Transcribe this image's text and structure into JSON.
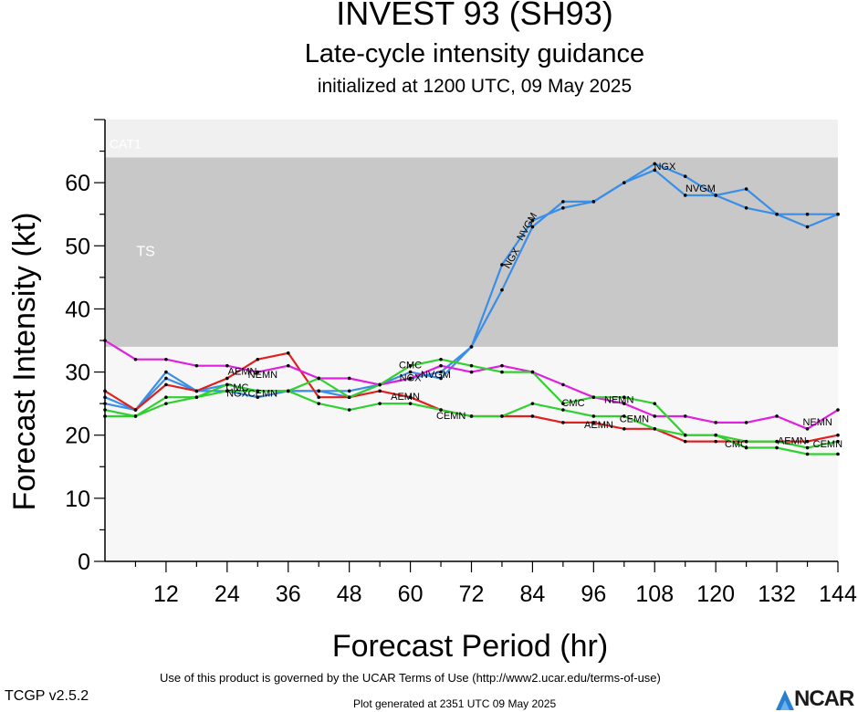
{
  "header": {
    "title": "INVEST 93 (SH93)",
    "subtitle": "Late-cycle intensity guidance",
    "init": "initialized at 1200 UTC, 09 May 2025"
  },
  "footer": {
    "terms": "Use of this product is governed by the UCAR Terms of Use (http://www2.ucar.edu/terms-of-use)",
    "version": "TCGP v2.5.2",
    "generated": "Plot generated at 2351 UTC   09 May 2025",
    "logo": "NCAR"
  },
  "chart_data": {
    "type": "line",
    "xlabel": "Forecast Period (hr)",
    "ylabel": "Forecast Intensity (kt)",
    "xlim": [
      0,
      144
    ],
    "ylim": [
      0,
      70
    ],
    "xticks": [
      12,
      24,
      36,
      48,
      60,
      72,
      84,
      96,
      108,
      120,
      132,
      144
    ],
    "yticks": [
      0,
      10,
      20,
      30,
      40,
      50,
      60
    ],
    "bands": [
      {
        "label": "TS",
        "from": 34,
        "to": 64,
        "color": "#c8c8c8"
      },
      {
        "label": "CAT1",
        "from": 64,
        "to": 70,
        "color": "#f0f0f0"
      }
    ],
    "background": "#f7f7f7",
    "series": [
      {
        "id": "blue-a",
        "color": "#3a8ee6",
        "x": [
          0,
          6,
          12,
          18,
          24,
          30,
          36,
          42,
          48,
          54,
          60,
          66,
          72,
          78,
          84,
          90,
          96,
          102,
          108,
          114,
          120,
          126,
          132,
          138,
          144
        ],
        "y": [
          26,
          24,
          30,
          27,
          27,
          26,
          27,
          27,
          26,
          28,
          29,
          30,
          34,
          47,
          54,
          56,
          57,
          60,
          63,
          61,
          58,
          59,
          55,
          55,
          55
        ]
      },
      {
        "id": "blue-b",
        "color": "#3a8ee6",
        "x": [
          0,
          6,
          12,
          18,
          24,
          30,
          36,
          42,
          48,
          54,
          60,
          66,
          72,
          78,
          84,
          90,
          96,
          102,
          108,
          114,
          120,
          126,
          132,
          138,
          144
        ],
        "y": [
          25,
          24,
          29,
          27,
          28,
          27,
          27,
          27,
          27,
          28,
          30,
          29,
          34,
          43,
          53,
          57,
          57,
          60,
          62,
          58,
          58,
          56,
          55,
          53,
          55
        ]
      },
      {
        "id": "red",
        "color": "#e02020",
        "x": [
          0,
          6,
          12,
          18,
          24,
          30,
          36,
          42,
          48,
          54,
          60,
          66,
          72,
          78,
          84,
          90,
          96,
          102,
          108,
          114,
          120,
          126,
          132,
          138,
          144
        ],
        "y": [
          27,
          24,
          28,
          27,
          29,
          32,
          33,
          26,
          26,
          27,
          26,
          24,
          23,
          23,
          23,
          22,
          22,
          21,
          21,
          19,
          19,
          19,
          19,
          19,
          20
        ]
      },
      {
        "id": "magenta",
        "color": "#e020e0",
        "x": [
          0,
          6,
          12,
          18,
          24,
          30,
          36,
          42,
          48,
          54,
          60,
          66,
          72,
          78,
          84,
          90,
          96,
          102,
          108,
          114,
          120,
          126,
          132,
          138,
          144
        ],
        "y": [
          35,
          32,
          32,
          31,
          31,
          30,
          31,
          29,
          29,
          28,
          29,
          31,
          30,
          31,
          30,
          28,
          26,
          25,
          23,
          23,
          22,
          22,
          23,
          21,
          24
        ]
      },
      {
        "id": "green-a",
        "color": "#30d030",
        "x": [
          0,
          6,
          12,
          18,
          24,
          30,
          36,
          42,
          48,
          54,
          60,
          66,
          72,
          78,
          84,
          90,
          96,
          102,
          108,
          114,
          120,
          126,
          132,
          138,
          144
        ],
        "y": [
          24,
          23,
          26,
          26,
          28,
          27,
          27,
          29,
          26,
          28,
          31,
          32,
          31,
          30,
          30,
          25,
          26,
          26,
          25,
          20,
          20,
          19,
          19,
          18,
          19
        ]
      },
      {
        "id": "green-b",
        "color": "#30d030",
        "x": [
          0,
          6,
          12,
          18,
          24,
          30,
          36,
          42,
          48,
          54,
          60,
          66,
          72,
          78,
          84,
          90,
          96,
          102,
          108,
          114,
          120,
          126,
          132,
          138,
          144
        ],
        "y": [
          23,
          23,
          25,
          26,
          27,
          27,
          27,
          25,
          24,
          25,
          25,
          24,
          23,
          23,
          25,
          24,
          23,
          23,
          21,
          20,
          20,
          18,
          18,
          17,
          17
        ]
      }
    ],
    "annotations": [
      {
        "text": "TS",
        "x": 8,
        "y": 49,
        "color": "#ffffff",
        "size": 16
      },
      {
        "text": "CAT1",
        "x": 4,
        "y": 66,
        "color": "#ffffff",
        "size": 14
      },
      {
        "text": "AEMN",
        "x": 27,
        "y": 30,
        "color": "#000",
        "size": 11
      },
      {
        "text": "NEMN",
        "x": 31,
        "y": 29.5,
        "color": "#000",
        "size": 11
      },
      {
        "text": "CMC",
        "x": 26,
        "y": 27.5,
        "color": "#000",
        "size": 11
      },
      {
        "text": "NGX",
        "x": 26,
        "y": 26.5,
        "color": "#000",
        "size": 11
      },
      {
        "text": "CEMN",
        "x": 31,
        "y": 26.5,
        "color": "#000",
        "size": 11
      },
      {
        "text": "CMC",
        "x": 60,
        "y": 31,
        "color": "#000",
        "size": 11
      },
      {
        "text": "NGX",
        "x": 60,
        "y": 29,
        "color": "#000",
        "size": 11
      },
      {
        "text": "NVGM",
        "x": 65,
        "y": 29.5,
        "color": "#000",
        "size": 11
      },
      {
        "text": "AEMN",
        "x": 59,
        "y": 26,
        "color": "#000",
        "size": 11
      },
      {
        "text": "CEMN",
        "x": 68,
        "y": 23,
        "color": "#000",
        "size": 11
      },
      {
        "text": "NGX",
        "x": 80,
        "y": 48,
        "color": "#000",
        "size": 11,
        "rotate": -60
      },
      {
        "text": "NVGM",
        "x": 83,
        "y": 53,
        "color": "#000",
        "size": 11,
        "rotate": -60
      },
      {
        "text": "CMC",
        "x": 92,
        "y": 25,
        "color": "#000",
        "size": 11
      },
      {
        "text": "NEMN",
        "x": 101,
        "y": 25.5,
        "color": "#000",
        "size": 11
      },
      {
        "text": "AEMN",
        "x": 97,
        "y": 21.5,
        "color": "#000",
        "size": 11
      },
      {
        "text": "CEMN",
        "x": 104,
        "y": 22.5,
        "color": "#000",
        "size": 11
      },
      {
        "text": "NGX",
        "x": 110,
        "y": 62.5,
        "color": "#000",
        "size": 11
      },
      {
        "text": "NVGM",
        "x": 117,
        "y": 59,
        "color": "#000",
        "size": 11
      },
      {
        "text": "CMC",
        "x": 124,
        "y": 18.5,
        "color": "#000",
        "size": 11
      },
      {
        "text": "NEMN",
        "x": 140,
        "y": 22,
        "color": "#000",
        "size": 11
      },
      {
        "text": "AEMN",
        "x": 135,
        "y": 19,
        "color": "#000",
        "size": 11
      },
      {
        "text": "CEMN",
        "x": 142,
        "y": 18.5,
        "color": "#000",
        "size": 11
      }
    ]
  }
}
